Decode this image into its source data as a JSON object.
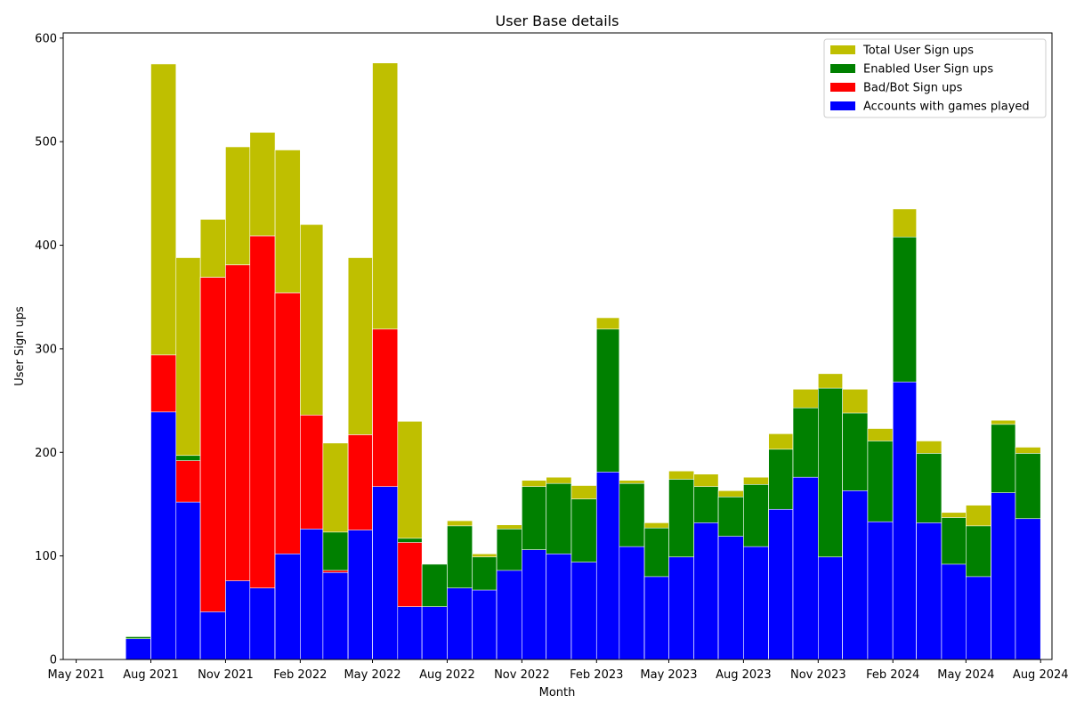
{
  "chart_data": {
    "type": "bar",
    "stacked": false,
    "title": "User Base details",
    "xlabel": "Month",
    "ylabel": "User Sign ups",
    "ylim": [
      0,
      605
    ],
    "xlim": [
      "2021-04-15",
      "2024-08-15"
    ],
    "yticks": [
      0,
      100,
      200,
      300,
      400,
      500,
      600
    ],
    "xticks": [
      {
        "date": "2021-05-01",
        "label": "May 2021"
      },
      {
        "date": "2021-08-01",
        "label": "Aug 2021"
      },
      {
        "date": "2021-11-01",
        "label": "Nov 2021"
      },
      {
        "date": "2022-02-01",
        "label": "Feb 2022"
      },
      {
        "date": "2022-05-01",
        "label": "May 2022"
      },
      {
        "date": "2022-08-01",
        "label": "Aug 2022"
      },
      {
        "date": "2022-11-01",
        "label": "Nov 2022"
      },
      {
        "date": "2023-02-01",
        "label": "Feb 2023"
      },
      {
        "date": "2023-05-01",
        "label": "May 2023"
      },
      {
        "date": "2023-08-01",
        "label": "Aug 2023"
      },
      {
        "date": "2023-11-01",
        "label": "Nov 2023"
      },
      {
        "date": "2024-02-01",
        "label": "Feb 2024"
      },
      {
        "date": "2024-05-01",
        "label": "May 2024"
      },
      {
        "date": "2024-08-01",
        "label": "Aug 2024"
      }
    ],
    "legend_position": "top-right",
    "grid": false,
    "categories": [
      "2021-07",
      "2021-08",
      "2021-09",
      "2021-10",
      "2021-11",
      "2021-12",
      "2022-01",
      "2022-02",
      "2022-03",
      "2022-04",
      "2022-05",
      "2022-06",
      "2022-07",
      "2022-08",
      "2022-09",
      "2022-10",
      "2022-11",
      "2022-12",
      "2023-01",
      "2023-02",
      "2023-03",
      "2023-04",
      "2023-05",
      "2023-06",
      "2023-07",
      "2023-08",
      "2023-09",
      "2023-10",
      "2023-11",
      "2023-12",
      "2024-01",
      "2024-02",
      "2024-03",
      "2024-04",
      "2024-05",
      "2024-06",
      "2024-07"
    ],
    "series": [
      {
        "name": "Total User Sign ups",
        "color": "#bfbf00",
        "values": [
          22,
          575,
          388,
          425,
          495,
          509,
          492,
          420,
          209,
          388,
          576,
          230,
          92,
          134,
          102,
          130,
          173,
          176,
          168,
          330,
          173,
          132,
          182,
          179,
          163,
          176,
          218,
          261,
          276,
          261,
          223,
          435,
          211,
          142,
          149,
          231,
          205
        ]
      },
      {
        "name": "Enabled User Sign ups",
        "color": "#008000",
        "values": [
          22,
          294,
          197,
          369,
          381,
          409,
          354,
          236,
          123,
          217,
          319,
          117,
          92,
          129,
          99,
          126,
          167,
          170,
          155,
          319,
          170,
          127,
          174,
          167,
          157,
          169,
          203,
          243,
          262,
          238,
          211,
          408,
          199,
          137,
          129,
          227,
          199
        ]
      },
      {
        "name": "Bad/Bot Sign ups",
        "color": "#ff0000",
        "values": [
          0,
          294,
          192,
          369,
          381,
          409,
          354,
          236,
          86,
          217,
          319,
          113,
          0,
          0,
          0,
          0,
          0,
          0,
          0,
          0,
          0,
          0,
          0,
          0,
          0,
          0,
          0,
          0,
          0,
          0,
          0,
          0,
          0,
          0,
          0,
          0,
          0
        ]
      },
      {
        "name": "Accounts with games played",
        "color": "#0000ff",
        "values": [
          20,
          239,
          152,
          46,
          76,
          69,
          102,
          126,
          84,
          125,
          167,
          51,
          51,
          69,
          67,
          86,
          106,
          102,
          94,
          181,
          109,
          80,
          99,
          132,
          119,
          109,
          145,
          176,
          99,
          163,
          133,
          268,
          132,
          92,
          80,
          161,
          136
        ]
      }
    ]
  }
}
